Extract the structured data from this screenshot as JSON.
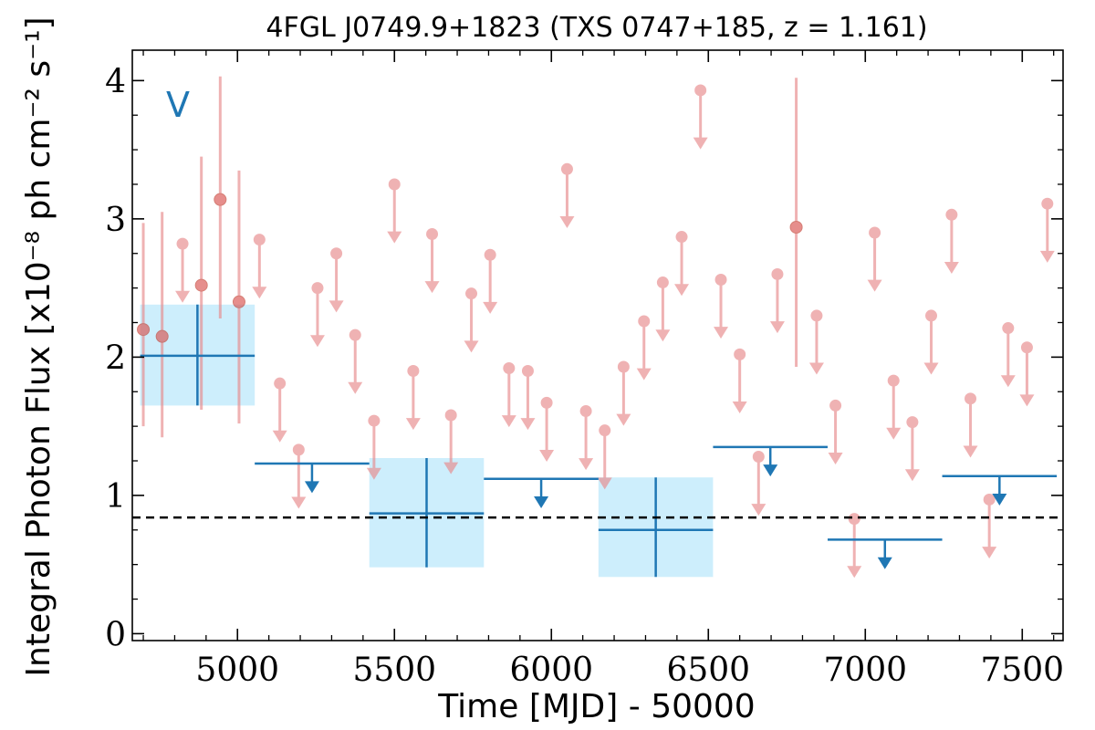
{
  "chart_data": {
    "type": "scatter",
    "title": "4FGL J0749.9+1823 (TXS 0747+185, z = 1.161)",
    "xlabel": "Time [MJD] - 50000",
    "ylabel": "Integral Photon Flux [x10⁻⁸ ph cm⁻² s⁻¹]",
    "variability_label": "V",
    "xlim": [
      4665,
      7630
    ],
    "ylim": [
      -0.05,
      4.22
    ],
    "xticks": [
      5000,
      5500,
      6000,
      6500,
      7000,
      7500
    ],
    "xtick_labels": [
      "5000",
      "5500",
      "6000",
      "6500",
      "7000",
      "7500"
    ],
    "yticks": [
      0,
      1,
      2,
      3,
      4
    ],
    "ytick_labels": [
      "0",
      "1",
      "2",
      "3",
      "4"
    ],
    "mean_flux": 0.84,
    "grid": false,
    "colors": {
      "short_bins": "#e8898c",
      "long_bins": "#1f77b4",
      "long_bins_fill": "#cdeefc",
      "mean_line": "#000000"
    },
    "series": [
      {
        "bin_width_days": 30,
        "detections": [
          {
            "x": 4700,
            "y": 2.2,
            "ylo": 1.5,
            "yhi": 2.97
          },
          {
            "x": 4760,
            "y": 2.15,
            "ylo": 1.42,
            "yhi": 3.05
          },
          {
            "x": 4885,
            "y": 2.52,
            "ylo": 1.62,
            "yhi": 3.45
          },
          {
            "x": 4945,
            "y": 3.14,
            "ylo": 2.28,
            "yhi": 4.03
          },
          {
            "x": 5005,
            "y": 2.4,
            "ylo": 1.52,
            "yhi": 3.35
          },
          {
            "x": 6780,
            "y": 2.94,
            "ylo": 1.93,
            "yhi": 4.02
          }
        ],
        "upper_limits": [
          {
            "x": 4825,
            "y": 2.82
          },
          {
            "x": 5070,
            "y": 2.85
          },
          {
            "x": 5135,
            "y": 1.81
          },
          {
            "x": 5195,
            "y": 1.33
          },
          {
            "x": 5255,
            "y": 2.5
          },
          {
            "x": 5315,
            "y": 2.75
          },
          {
            "x": 5375,
            "y": 2.16
          },
          {
            "x": 5435,
            "y": 1.54
          },
          {
            "x": 5500,
            "y": 3.25
          },
          {
            "x": 5560,
            "y": 1.9
          },
          {
            "x": 5620,
            "y": 2.89
          },
          {
            "x": 5680,
            "y": 1.58
          },
          {
            "x": 5745,
            "y": 2.46
          },
          {
            "x": 5805,
            "y": 2.74
          },
          {
            "x": 5865,
            "y": 1.92
          },
          {
            "x": 5925,
            "y": 1.9
          },
          {
            "x": 5985,
            "y": 1.67
          },
          {
            "x": 6050,
            "y": 3.36
          },
          {
            "x": 6110,
            "y": 1.61
          },
          {
            "x": 6170,
            "y": 1.47
          },
          {
            "x": 6230,
            "y": 1.93
          },
          {
            "x": 6295,
            "y": 2.26
          },
          {
            "x": 6355,
            "y": 2.54
          },
          {
            "x": 6415,
            "y": 2.87
          },
          {
            "x": 6475,
            "y": 3.93
          },
          {
            "x": 6540,
            "y": 2.56
          },
          {
            "x": 6600,
            "y": 2.02
          },
          {
            "x": 6660,
            "y": 1.28
          },
          {
            "x": 6720,
            "y": 2.6
          },
          {
            "x": 6845,
            "y": 2.3
          },
          {
            "x": 6905,
            "y": 1.65
          },
          {
            "x": 6965,
            "y": 0.83
          },
          {
            "x": 7030,
            "y": 2.9
          },
          {
            "x": 7090,
            "y": 1.83
          },
          {
            "x": 7150,
            "y": 1.53
          },
          {
            "x": 7210,
            "y": 2.3
          },
          {
            "x": 7275,
            "y": 3.03
          },
          {
            "x": 7335,
            "y": 1.7
          },
          {
            "x": 7395,
            "y": 0.97
          },
          {
            "x": 7455,
            "y": 2.21
          },
          {
            "x": 7515,
            "y": 2.07
          },
          {
            "x": 7580,
            "y": 3.11
          }
        ]
      },
      {
        "bin_width_days": 365,
        "detections": [
          {
            "x0": 4690,
            "x1": 5055,
            "y": 2.01,
            "ylo": 1.65,
            "yhi": 2.38
          },
          {
            "x0": 5420,
            "x1": 5785,
            "y": 0.87,
            "ylo": 0.48,
            "yhi": 1.27
          },
          {
            "x0": 6150,
            "x1": 6515,
            "y": 0.75,
            "ylo": 0.41,
            "yhi": 1.13
          }
        ],
        "upper_limits": [
          {
            "x0": 5055,
            "x1": 5420,
            "y": 1.23
          },
          {
            "x0": 5785,
            "x1": 6150,
            "y": 1.12
          },
          {
            "x0": 6515,
            "x1": 6880,
            "y": 1.35
          },
          {
            "x0": 6880,
            "x1": 7245,
            "y": 0.68
          },
          {
            "x0": 7245,
            "x1": 7610,
            "y": 1.14
          }
        ]
      }
    ]
  }
}
